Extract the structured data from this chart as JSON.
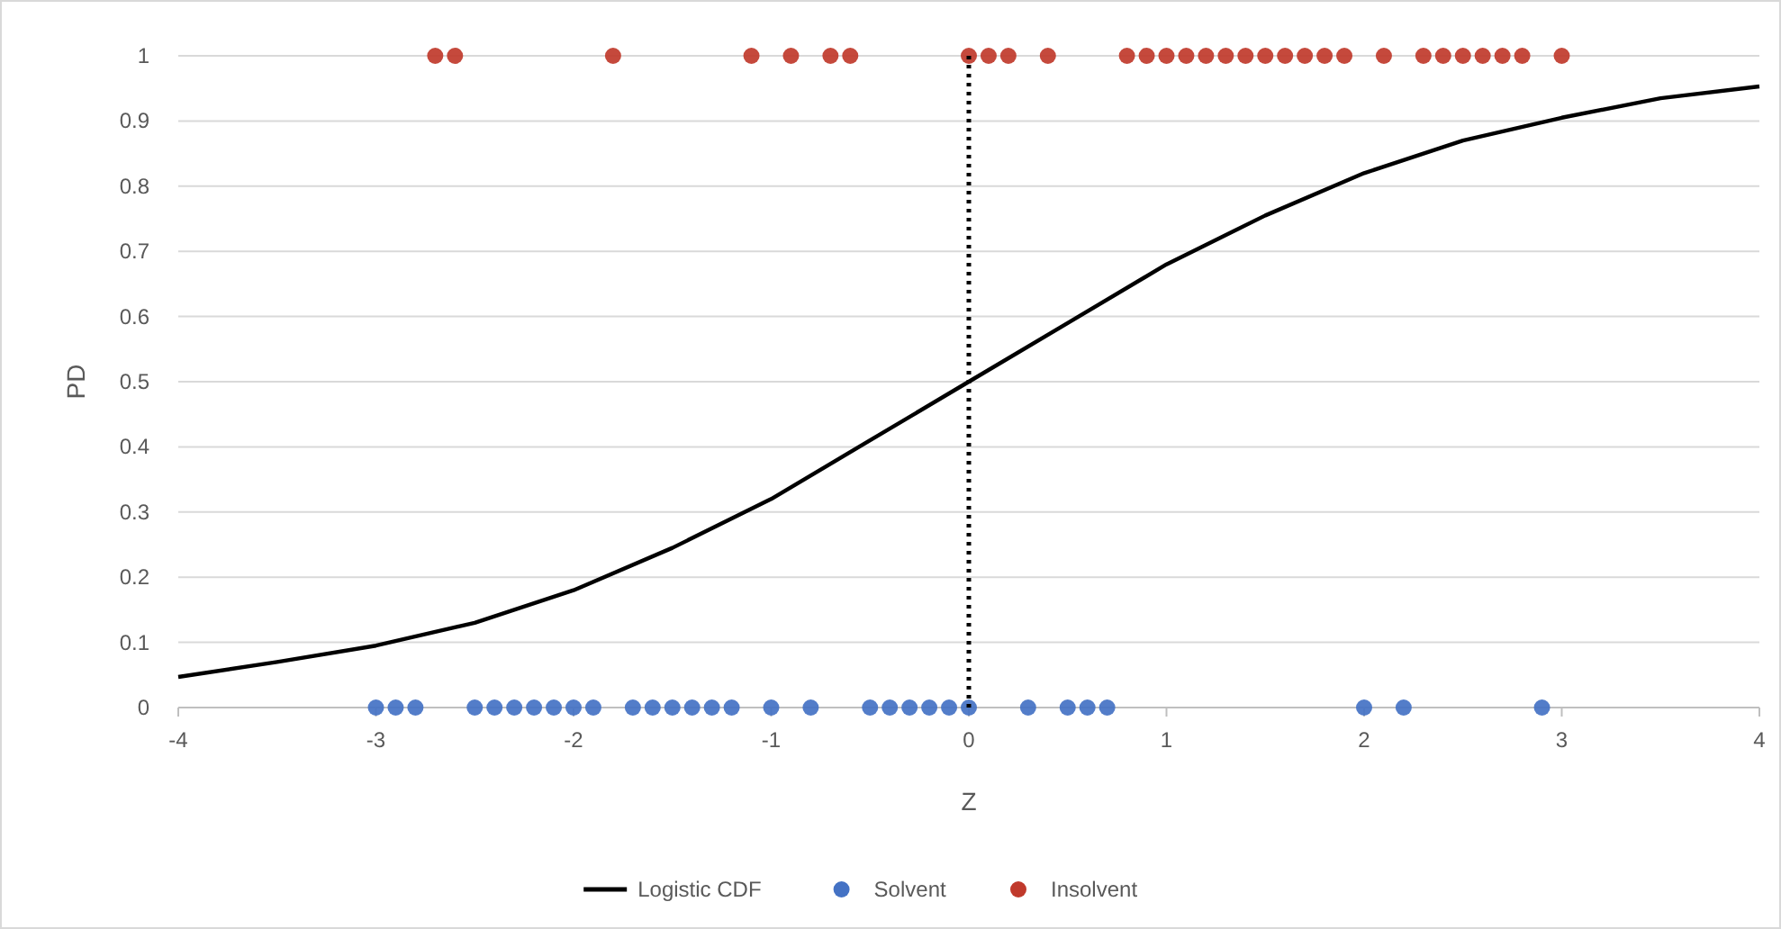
{
  "chart_data": {
    "type": "scatter",
    "xlabel": "Z",
    "ylabel": "PD",
    "xlim": [
      -4,
      4
    ],
    "xticks": [
      -4,
      -3,
      -2,
      -1,
      0,
      1,
      2,
      3,
      4
    ],
    "ylim": [
      0,
      1
    ],
    "yticks": [
      0,
      0.1,
      0.2,
      0.3,
      0.4,
      0.5,
      0.6,
      0.7,
      0.8,
      0.9,
      1
    ],
    "grid": "y",
    "legend": "bottom",
    "marker": "circle",
    "ref_lines": [
      {
        "axis": "x",
        "value": 0,
        "label": null,
        "color": "#000000",
        "line_style": "dotted"
      }
    ],
    "series": [
      {
        "name": "Logistic CDF",
        "type": "line",
        "color": "#000000",
        "marker": "none",
        "x": [
          -4,
          -3.5,
          -3,
          -2.5,
          -2,
          -1.5,
          -1,
          -0.5,
          0,
          0.5,
          1,
          1.5,
          2,
          2.5,
          3,
          3.5,
          4
        ],
        "values": [
          0.047,
          0.07,
          0.095,
          0.13,
          0.18,
          0.245,
          0.32,
          0.41,
          0.5,
          0.59,
          0.68,
          0.755,
          0.82,
          0.87,
          0.905,
          0.935,
          0.953
        ]
      },
      {
        "name": "Solvent",
        "type": "scatter",
        "color": "#4472c4",
        "x": [
          -3,
          -2.9,
          -2.8,
          -2.5,
          -2.4,
          -2.3,
          -2.2,
          -2.1,
          -2,
          -1.9,
          -1.7,
          -1.6,
          -1.5,
          -1.4,
          -1.3,
          -1.2,
          -1,
          -0.8,
          -0.5,
          -0.4,
          -0.3,
          -0.2,
          -0.1,
          0,
          0.3,
          0.5,
          0.6,
          0.7,
          2,
          2.2,
          2.9
        ],
        "values": [
          0,
          0,
          0,
          0,
          0,
          0,
          0,
          0,
          0,
          0,
          0,
          0,
          0,
          0,
          0,
          0,
          0,
          0,
          0,
          0,
          0,
          0,
          0,
          0,
          0,
          0,
          0,
          0,
          0,
          0,
          0
        ]
      },
      {
        "name": "Insolvent",
        "type": "scatter",
        "color": "#c0392b",
        "x": [
          -2.7,
          -2.6,
          -1.8,
          -1.1,
          -0.9,
          -0.7,
          -0.6,
          0,
          0.1,
          0.2,
          0.4,
          0.8,
          0.9,
          1,
          1.1,
          1.2,
          1.3,
          1.4,
          1.5,
          1.6,
          1.7,
          1.8,
          1.9,
          2.1,
          2.3,
          2.4,
          2.5,
          2.6,
          2.7,
          2.8,
          3
        ],
        "values": [
          1,
          1,
          1,
          1,
          1,
          1,
          1,
          1,
          1,
          1,
          1,
          1,
          1,
          1,
          1,
          1,
          1,
          1,
          1,
          1,
          1,
          1,
          1,
          1,
          1,
          1,
          1,
          1,
          1,
          1,
          1
        ]
      }
    ]
  }
}
